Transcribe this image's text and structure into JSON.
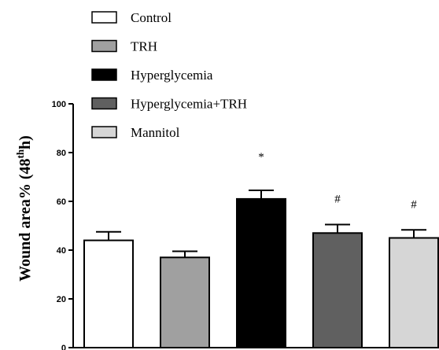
{
  "chart_data": {
    "type": "bar",
    "title": "",
    "xlabel": "",
    "ylabel": {
      "prefix": "Wound area% (48",
      "superscript": "th",
      "suffix": "h)"
    },
    "ylim": [
      0,
      100
    ],
    "yticks": [
      "0",
      "20",
      "40",
      "60",
      "80",
      "100"
    ],
    "categories": [
      "Control",
      "TRH",
      "Hyperglycemia",
      "Hyperglycemia+TRH",
      "Mannitol"
    ],
    "values": [
      44,
      37,
      61,
      47,
      45
    ],
    "errors": [
      3.5,
      2.5,
      3.5,
      3.5,
      3.3
    ],
    "annotations": [
      "",
      "",
      "*",
      "#",
      "#"
    ],
    "colors": [
      "#ffffff",
      "#a0a0a0",
      "#000000",
      "#606060",
      "#d6d6d6"
    ],
    "legend": {
      "position": "top-left",
      "entries": [
        "Control",
        "TRH",
        "Hyperglycemia",
        "Hyperglycemia+TRH",
        "Mannitol"
      ]
    },
    "grid": false
  }
}
